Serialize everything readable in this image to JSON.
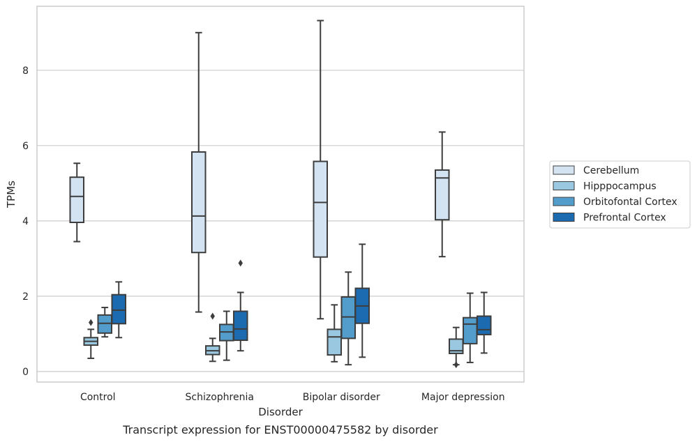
{
  "chart_data": {
    "type": "boxplot",
    "title": "Transcript expression for ENST00000475582 by disorder",
    "xlabel": "Disorder",
    "ylabel": "TPMs",
    "ylim": [
      -0.28,
      9.7
    ],
    "yticks": [
      0,
      2,
      4,
      6,
      8
    ],
    "grid": "horizontal",
    "legend_position": "right",
    "categories": [
      "Control",
      "Schizophrenia",
      "Bipolar disorder",
      "Major depression"
    ],
    "series": [
      {
        "name": "Cerebellum",
        "color": "#d3e3f2",
        "boxes": [
          {
            "whislo": 3.45,
            "q1": 3.96,
            "med": 4.65,
            "q3": 5.16,
            "whishi": 5.53,
            "fliers": []
          },
          {
            "whislo": 1.58,
            "q1": 3.16,
            "med": 4.13,
            "q3": 5.83,
            "whishi": 9.0,
            "fliers": []
          },
          {
            "whislo": 1.4,
            "q1": 3.04,
            "med": 4.49,
            "q3": 5.58,
            "whishi": 9.32,
            "fliers": []
          },
          {
            "whislo": 3.05,
            "q1": 4.03,
            "med": 5.14,
            "q3": 5.35,
            "whishi": 6.36,
            "fliers": []
          }
        ]
      },
      {
        "name": "Hipppocampus",
        "color": "#9ac8e0",
        "boxes": [
          {
            "whislo": 0.35,
            "q1": 0.7,
            "med": 0.8,
            "q3": 0.9,
            "whishi": 1.12,
            "fliers": [
              1.3
            ]
          },
          {
            "whislo": 0.27,
            "q1": 0.45,
            "med": 0.55,
            "q3": 0.68,
            "whishi": 0.88,
            "fliers": [
              1.47
            ]
          },
          {
            "whislo": 0.26,
            "q1": 0.44,
            "med": 0.92,
            "q3": 1.12,
            "whishi": 1.77,
            "fliers": []
          },
          {
            "whislo": 0.18,
            "q1": 0.48,
            "med": 0.55,
            "q3": 0.86,
            "whishi": 1.17,
            "fliers": [
              0.18
            ]
          }
        ]
      },
      {
        "name": "Orbitofontal Cortex",
        "color": "#529dcc",
        "boxes": [
          {
            "whislo": 0.92,
            "q1": 1.02,
            "med": 1.28,
            "q3": 1.5,
            "whishi": 1.7,
            "fliers": []
          },
          {
            "whislo": 0.3,
            "q1": 0.82,
            "med": 1.05,
            "q3": 1.25,
            "whishi": 1.6,
            "fliers": []
          },
          {
            "whislo": 0.18,
            "q1": 0.88,
            "med": 1.45,
            "q3": 1.98,
            "whishi": 2.64,
            "fliers": []
          },
          {
            "whislo": 0.24,
            "q1": 0.74,
            "med": 1.26,
            "q3": 1.43,
            "whishi": 2.08,
            "fliers": []
          }
        ]
      },
      {
        "name": "Prefrontal Cortex",
        "color": "#1c6aaf",
        "boxes": [
          {
            "whislo": 0.9,
            "q1": 1.27,
            "med": 1.63,
            "q3": 2.04,
            "whishi": 2.38,
            "fliers": []
          },
          {
            "whislo": 0.55,
            "q1": 0.83,
            "med": 1.13,
            "q3": 1.6,
            "whishi": 2.1,
            "fliers": [
              2.88
            ]
          },
          {
            "whislo": 0.38,
            "q1": 1.28,
            "med": 1.74,
            "q3": 2.21,
            "whishi": 3.38,
            "fliers": []
          },
          {
            "whislo": 0.49,
            "q1": 0.98,
            "med": 1.11,
            "q3": 1.47,
            "whishi": 2.1,
            "fliers": []
          }
        ]
      }
    ]
  }
}
